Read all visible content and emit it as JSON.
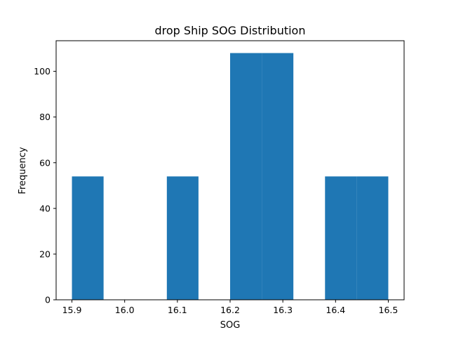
{
  "chart_data": {
    "type": "bar",
    "subtype": "histogram",
    "title": "drop Ship SOG Distribution",
    "xlabel": "SOG",
    "ylabel": "Frequency",
    "xlim": [
      15.87,
      16.53
    ],
    "ylim": [
      0,
      113.4
    ],
    "x_ticks": [
      "15.9",
      "16.0",
      "16.1",
      "16.2",
      "16.3",
      "16.4",
      "16.5"
    ],
    "y_ticks": [
      "0",
      "20",
      "40",
      "60",
      "80",
      "100"
    ],
    "bins": [
      {
        "start": 15.9,
        "end": 15.96,
        "count": 54
      },
      {
        "start": 15.96,
        "end": 16.02,
        "count": 0
      },
      {
        "start": 16.02,
        "end": 16.08,
        "count": 0
      },
      {
        "start": 16.08,
        "end": 16.14,
        "count": 54
      },
      {
        "start": 16.14,
        "end": 16.2,
        "count": 0
      },
      {
        "start": 16.2,
        "end": 16.26,
        "count": 108
      },
      {
        "start": 16.26,
        "end": 16.32,
        "count": 108
      },
      {
        "start": 16.32,
        "end": 16.38,
        "count": 0
      },
      {
        "start": 16.38,
        "end": 16.44,
        "count": 54
      },
      {
        "start": 16.44,
        "end": 16.5,
        "count": 54
      }
    ],
    "bar_color": "#1f77b4",
    "grid": false,
    "legend": "none"
  }
}
